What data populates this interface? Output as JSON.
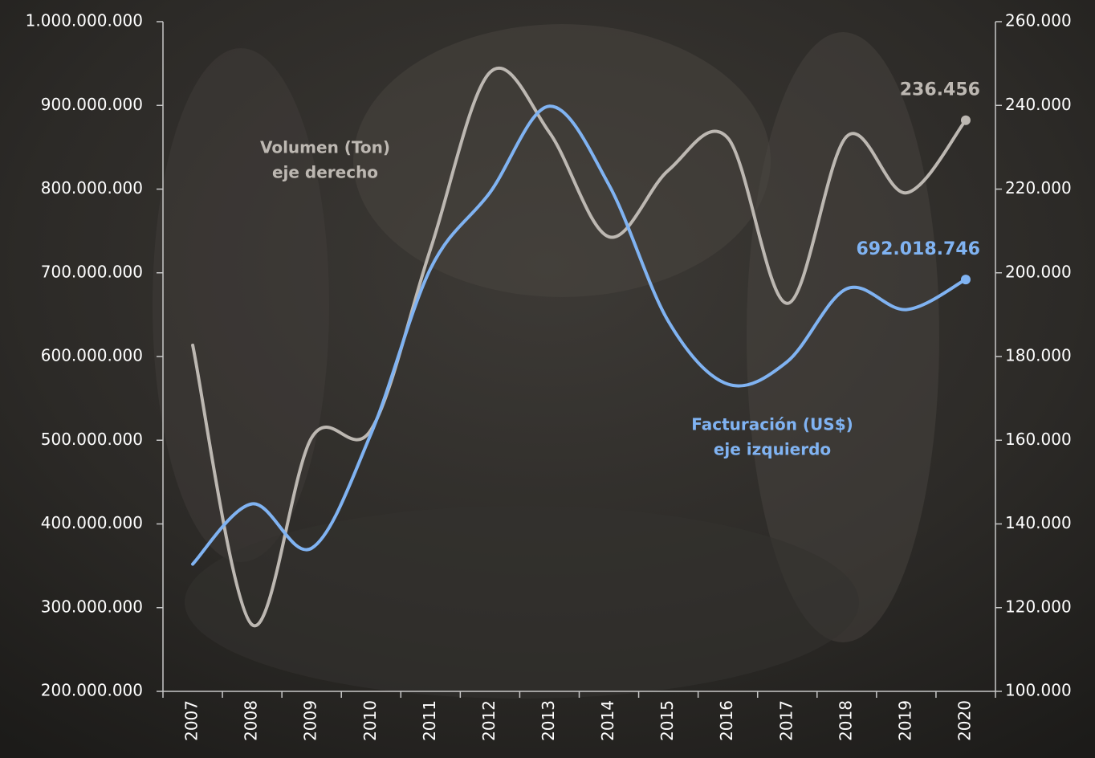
{
  "chart_data": {
    "type": "line",
    "categories": [
      "2007",
      "2008",
      "2009",
      "2010",
      "2011",
      "2012",
      "2013",
      "2014",
      "2015",
      "2016",
      "2017",
      "2018",
      "2019",
      "2020"
    ],
    "series": [
      {
        "name": "Volumen (Ton)",
        "axis_note": "eje derecho",
        "color": "#bdb8b2",
        "axis": "y2",
        "values": [
          182700,
          115900,
          160600,
          162500,
          205700,
          247900,
          233500,
          208600,
          224500,
          232200,
          192700,
          232600,
          219100,
          236456
        ],
        "value_labels": [
          null,
          null,
          null,
          null,
          null,
          null,
          null,
          null,
          null,
          null,
          null,
          null,
          null,
          "236.456"
        ]
      },
      {
        "name": "Facturación (US$)",
        "axis_note": "eje izquierdo",
        "color": "#80b3f2",
        "axis": "y",
        "values": [
          352000000,
          424000000,
          371000000,
          508000000,
          705000000,
          796000000,
          899000000,
          805000000,
          642000000,
          567000000,
          594000000,
          681000000,
          656000000,
          692018746
        ],
        "value_labels": [
          null,
          null,
          null,
          null,
          null,
          null,
          null,
          null,
          null,
          null,
          null,
          null,
          null,
          "692.018.746"
        ]
      }
    ],
    "ylim": [
      200000000,
      1000000000
    ],
    "yticks": [
      {
        "value": 200000000,
        "label": "200.000.000"
      },
      {
        "value": 300000000,
        "label": "300.000.000"
      },
      {
        "value": 400000000,
        "label": "400.000.000"
      },
      {
        "value": 500000000,
        "label": "500.000.000"
      },
      {
        "value": 600000000,
        "label": "600.000.000"
      },
      {
        "value": 700000000,
        "label": "700.000.000"
      },
      {
        "value": 800000000,
        "label": "800.000.000"
      },
      {
        "value": 900000000,
        "label": "900.000.000"
      },
      {
        "value": 1000000000,
        "label": "1.000.000.000"
      }
    ],
    "y2lim": [
      100000,
      260000
    ],
    "y2ticks": [
      {
        "value": 100000,
        "label": "100.000"
      },
      {
        "value": 120000,
        "label": "120.000"
      },
      {
        "value": 140000,
        "label": "140.000"
      },
      {
        "value": 160000,
        "label": "160.000"
      },
      {
        "value": 180000,
        "label": "180.000"
      },
      {
        "value": 200000,
        "label": "200.000"
      },
      {
        "value": 220000,
        "label": "220.000"
      },
      {
        "value": 240000,
        "label": "240.000"
      },
      {
        "value": 260000,
        "label": "260.000"
      }
    ],
    "smooth": true
  }
}
